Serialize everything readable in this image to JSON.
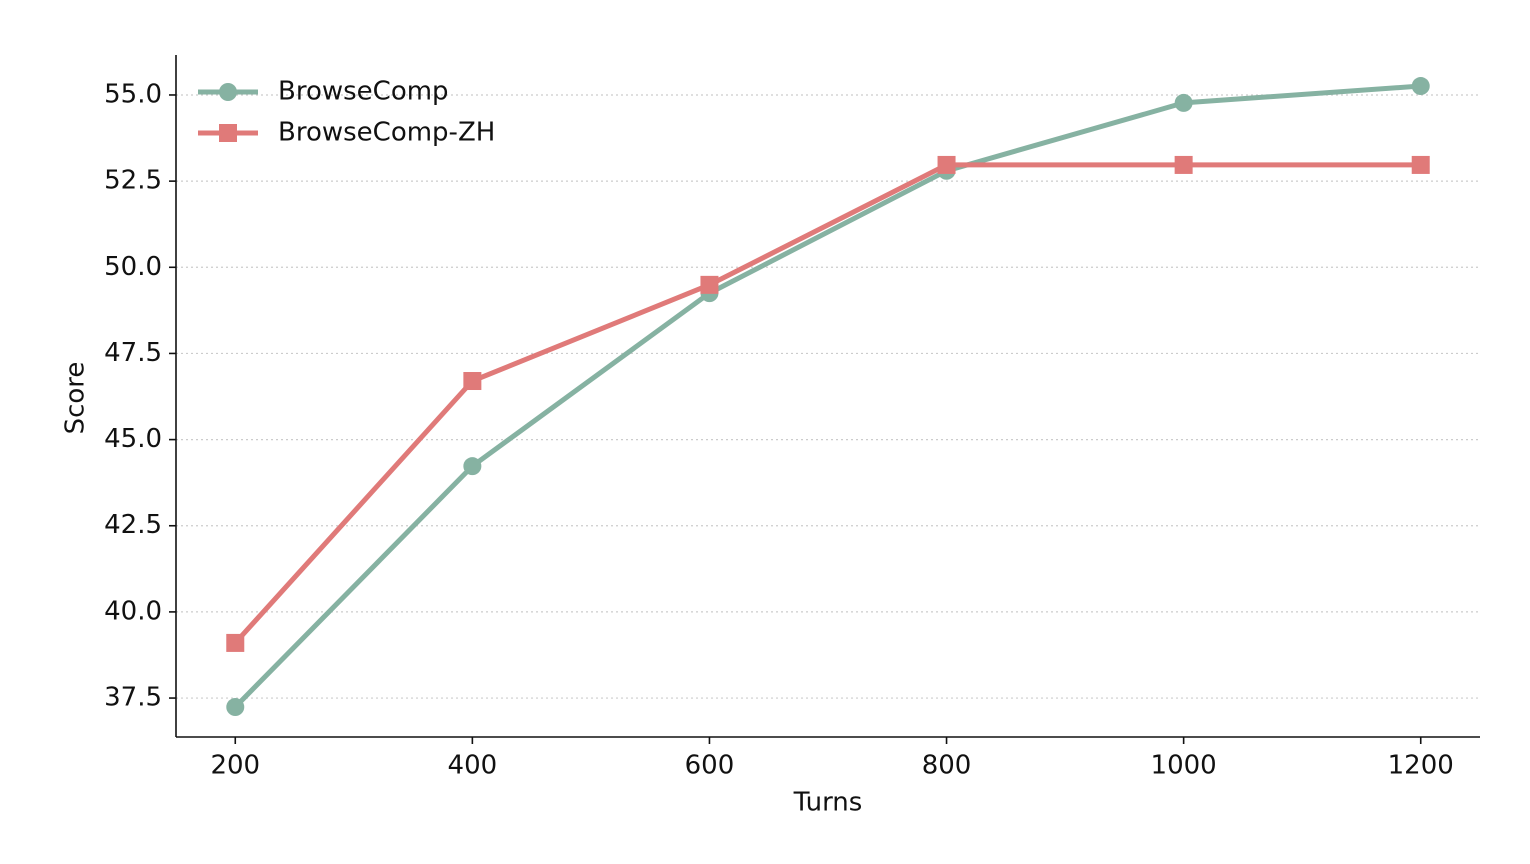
{
  "chart_data": {
    "type": "line",
    "x_label": "Turns",
    "y_label": "Score",
    "x": [
      200,
      400,
      600,
      800,
      1000,
      1200
    ],
    "series": [
      {
        "name": "BrowseComp",
        "color": "#86b2a2",
        "marker": "circle",
        "values": [
          37.24,
          44.23,
          49.25,
          52.8,
          54.77,
          55.26
        ]
      },
      {
        "name": "BrowseComp-ZH",
        "color": "#e07a79",
        "marker": "square",
        "values": [
          39.1,
          46.7,
          49.49,
          52.97,
          52.97,
          52.97
        ]
      }
    ],
    "xlim": [
      150,
      1250
    ],
    "xticks": [
      200,
      400,
      600,
      800,
      1000,
      1200
    ],
    "ylim": [
      36.37,
      56.16
    ],
    "yticks": [
      37.5,
      {
        "value": 40,
        "label": "40.0"
      },
      42.5,
      {
        "value": 45,
        "label": "45.0"
      },
      47.5,
      {
        "value": 50,
        "label": "50.0"
      },
      52.5,
      {
        "value": 55,
        "label": "55.0"
      }
    ],
    "grid": true,
    "legend": "upper-left"
  }
}
